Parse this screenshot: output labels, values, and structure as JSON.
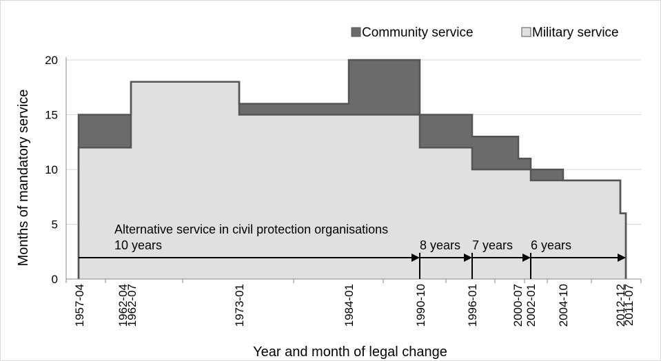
{
  "chart_data": {
    "type": "area",
    "xlabel": "Year and month of legal change",
    "ylabel": "Months of mandatory service",
    "ylim": [
      0,
      20
    ],
    "yticks": [
      0,
      5,
      10,
      15,
      20
    ],
    "grid": true,
    "legend_position": "top-right",
    "x": [
      "1957-04",
      "1962-04",
      "1962-07",
      "1973-01",
      "1984-01",
      "1990-10",
      "1996-01",
      "2000-07",
      "2002-01",
      "2004-10",
      "2012-12",
      "2011-07"
    ],
    "series": [
      {
        "name": "Community service",
        "color": "#6b6b6b",
        "values": [
          15,
          15,
          18,
          16,
          20,
          15,
          13,
          11,
          10,
          9,
          6,
          6
        ]
      },
      {
        "name": "Military service",
        "color": "#e0e0e0",
        "values": [
          12,
          12,
          18,
          15,
          15,
          12,
          10,
          10,
          9,
          9,
          6,
          6
        ]
      }
    ],
    "annotations": {
      "line1": "Alternative service in civil protection organisations",
      "periods": [
        "10 years",
        "8 years",
        "7 years",
        "6 years"
      ]
    }
  }
}
